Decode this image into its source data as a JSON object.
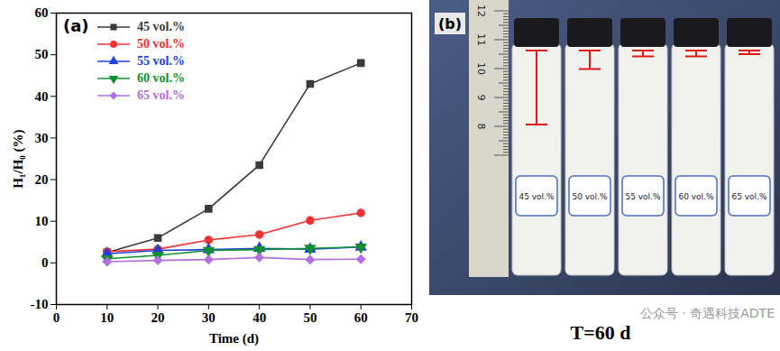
{
  "chart_data": {
    "type": "line",
    "panel_label": "(a)",
    "x_label": "Time (d)",
    "y_label": "H₁/H₀ (%)",
    "x": [
      10,
      20,
      30,
      40,
      50,
      60
    ],
    "series": [
      {
        "name": "45 vol.%",
        "color": "#3a3a3a",
        "marker": "square",
        "line_style": "solid",
        "values": [
          2.5,
          6,
          13,
          23.5,
          43,
          48
        ]
      },
      {
        "name": "50 vol.%",
        "color": "#f03232",
        "marker": "circle",
        "line_style": "solid",
        "values": [
          2.7,
          3.3,
          5.5,
          6.8,
          10.2,
          12
        ]
      },
      {
        "name": "55 vol.%",
        "color": "#2040e0",
        "marker": "triangle",
        "line_style": "solid",
        "values": [
          2.2,
          3,
          3.2,
          3.5,
          3.3,
          3.8
        ]
      },
      {
        "name": "60 vol.%",
        "color": "#109030",
        "marker": "triangle-down",
        "line_style": "solid",
        "values": [
          1,
          1.8,
          3,
          3.2,
          3.5,
          3.8
        ]
      },
      {
        "name": "65 vol.%",
        "color": "#b070e0",
        "marker": "diamond",
        "line_style": "solid",
        "values": [
          0.3,
          0.6,
          0.8,
          1.3,
          0.8,
          0.9
        ]
      }
    ],
    "xlim": [
      0,
      70
    ],
    "xticks": [
      0,
      10,
      20,
      30,
      40,
      50,
      60,
      70
    ],
    "ylim": [
      -10,
      60
    ],
    "yticks": [
      -10,
      0,
      10,
      20,
      30,
      40,
      50,
      60
    ],
    "grid": false,
    "legend": "upper left"
  },
  "photo": {
    "panel_label": "(b)",
    "ruler_labels": [
      12,
      11,
      10,
      9,
      8
    ],
    "vial_labels": [
      "45 vol.%",
      "50 vol.%",
      "55 vol.%",
      "60 vol.%",
      "65 vol.%"
    ],
    "caption": "T=60 d"
  },
  "watermark": "公众号 · 奇遇科技ADTE"
}
